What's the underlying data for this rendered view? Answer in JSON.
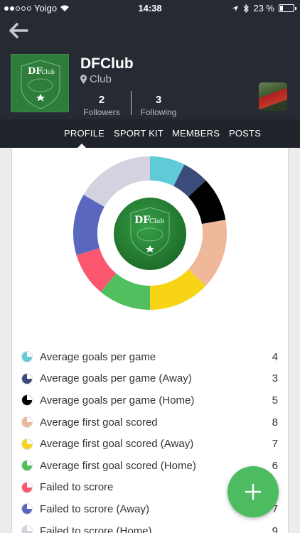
{
  "status_bar": {
    "carrier": "Yoigo",
    "time": "14:38",
    "battery": "23 %"
  },
  "club": {
    "name": "DFClub",
    "type": "Club",
    "logo_text": "DF",
    "logo_sub": "Club"
  },
  "stats": [
    {
      "count": "2",
      "label": "Followers"
    },
    {
      "count": "3",
      "label": "Following"
    }
  ],
  "tabs": [
    "PROFILE",
    "SPORT KIT",
    "MEMBERS",
    "POSTS"
  ],
  "chart_data": {
    "type": "pie",
    "values": [
      4,
      3,
      5,
      8,
      7,
      6,
      5,
      7,
      9
    ],
    "colors": [
      "#5ecbd7",
      "#3b4b7a",
      "#000000",
      "#f0b89b",
      "#f7d416",
      "#52bf5f",
      "#fb5771",
      "#5a67be",
      "#d3d3e0"
    ]
  },
  "stats_list": [
    {
      "label": "Average goals per game",
      "value": "4",
      "color": "#5ecbd7"
    },
    {
      "label": "Average goals per game (Away)",
      "value": "3",
      "color": "#3b4b7a"
    },
    {
      "label": "Average goals per game (Home)",
      "value": "5",
      "color": "#000000"
    },
    {
      "label": "Average first goal scored",
      "value": "8",
      "color": "#f0b89b"
    },
    {
      "label": "Average first goal scored (Away)",
      "value": "7",
      "color": "#f7d416"
    },
    {
      "label": "Average first goal scored (Home)",
      "value": "6",
      "color": "#52bf5f"
    },
    {
      "label": "Failed to scrore",
      "value": "5",
      "color": "#fb5771"
    },
    {
      "label": "Failed to scrore (Away)",
      "value": "7",
      "color": "#5a67be"
    },
    {
      "label": "Failed to scrore (Home)",
      "value": "9",
      "color": "#d3d3e0"
    }
  ],
  "icons": {
    "back": "arrow-left-icon",
    "add": "plus-icon",
    "location": "map-pin-icon"
  }
}
